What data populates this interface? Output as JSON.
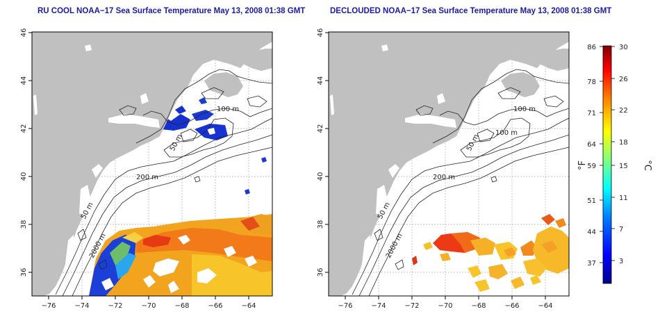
{
  "panels": [
    {
      "title": "RU COOL NOAA−17 Sea Surface Temperature May 13, 2008 01:38 GMT",
      "contour_labels": [
        "100 m",
        "50 m",
        "200 m",
        "50 m",
        "2000 m"
      ]
    },
    {
      "title": "DECLOUDED NOAA−17 Sea Surface Temperature May 13, 2008 01:38 GMT",
      "contour_labels": [
        "100 m",
        "100 m",
        "50 m",
        "200 m",
        "50 m",
        "2000 m"
      ]
    }
  ],
  "axes": {
    "x_ticks": [
      "−76",
      "−74",
      "−72",
      "−70",
      "−68",
      "−66",
      "−64"
    ],
    "y_ticks": [
      "36",
      "38",
      "40",
      "42",
      "44",
      "46"
    ]
  },
  "colorbar": {
    "f_label": "°F",
    "c_label": "°C",
    "f_ticks": [
      "86",
      "78",
      "71",
      "64",
      "59",
      "51",
      "44",
      "37"
    ],
    "c_ticks": [
      "30",
      "26",
      "22",
      "18",
      "15",
      "11",
      "7",
      "3"
    ],
    "gradient_colors": [
      "#00008f",
      "#0000ff",
      "#0080ff",
      "#00ffff",
      "#80ff80",
      "#ffff00",
      "#ff8000",
      "#ff0000",
      "#800000"
    ]
  },
  "colors": {
    "land": "#c0c0c0",
    "ocean": "#ffffff",
    "title": "#1a1aa8"
  }
}
